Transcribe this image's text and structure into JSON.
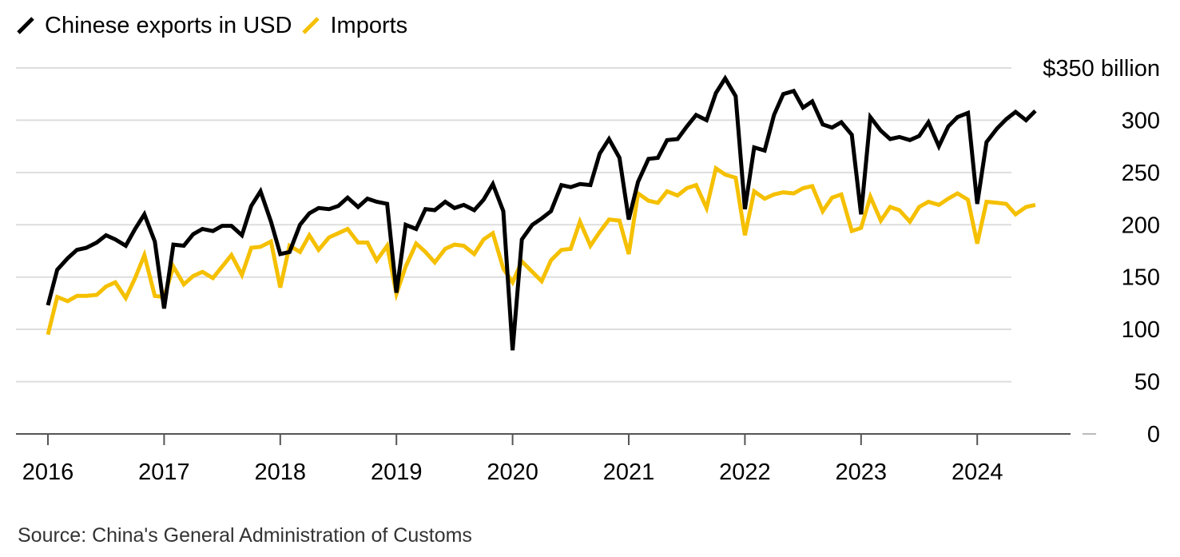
{
  "chart_data": {
    "type": "line",
    "title": "",
    "xlabel": "",
    "ylabel": "",
    "unit_label": "$350 billion",
    "ylim": [
      0,
      350
    ],
    "y_ticks": [
      {
        "value": 0,
        "label": "0"
      },
      {
        "value": 50,
        "label": "50"
      },
      {
        "value": 100,
        "label": "100"
      },
      {
        "value": 150,
        "label": "150"
      },
      {
        "value": 200,
        "label": "200"
      },
      {
        "value": 250,
        "label": "250"
      },
      {
        "value": 300,
        "label": "300"
      },
      {
        "value": 350,
        "label": "$350 billion"
      }
    ],
    "x_ticks": [
      "2016",
      "2017",
      "2018",
      "2019",
      "2020",
      "2021",
      "2022",
      "2023",
      "2024"
    ],
    "x_start_year": 2016,
    "x_end_year": 2024.67,
    "legend": "top-left",
    "series": [
      {
        "name": "Chinese exports in USD",
        "color": "#000000",
        "points": [
          [
            2016.0,
            123
          ],
          [
            2016.08,
            157
          ],
          [
            2016.17,
            168
          ],
          [
            2016.25,
            176
          ],
          [
            2016.33,
            178
          ],
          [
            2016.42,
            183
          ],
          [
            2016.5,
            190
          ],
          [
            2016.58,
            186
          ],
          [
            2016.67,
            180
          ],
          [
            2016.75,
            196
          ],
          [
            2016.83,
            210
          ],
          [
            2016.92,
            184
          ],
          [
            2017.0,
            120
          ],
          [
            2017.08,
            181
          ],
          [
            2017.17,
            180
          ],
          [
            2017.25,
            191
          ],
          [
            2017.33,
            196
          ],
          [
            2017.42,
            194
          ],
          [
            2017.5,
            199
          ],
          [
            2017.58,
            199
          ],
          [
            2017.67,
            190
          ],
          [
            2017.75,
            218
          ],
          [
            2017.83,
            232
          ],
          [
            2017.92,
            203
          ],
          [
            2018.0,
            172
          ],
          [
            2018.08,
            174
          ],
          [
            2018.17,
            200
          ],
          [
            2018.25,
            211
          ],
          [
            2018.33,
            216
          ],
          [
            2018.42,
            215
          ],
          [
            2018.5,
            218
          ],
          [
            2018.58,
            226
          ],
          [
            2018.67,
            217
          ],
          [
            2018.75,
            225
          ],
          [
            2018.83,
            222
          ],
          [
            2018.92,
            220
          ],
          [
            2019.0,
            135
          ],
          [
            2019.08,
            200
          ],
          [
            2019.17,
            196
          ],
          [
            2019.25,
            215
          ],
          [
            2019.33,
            214
          ],
          [
            2019.42,
            222
          ],
          [
            2019.5,
            216
          ],
          [
            2019.58,
            219
          ],
          [
            2019.67,
            214
          ],
          [
            2019.75,
            224
          ],
          [
            2019.83,
            239
          ],
          [
            2019.92,
            213
          ],
          [
            2020.0,
            80
          ],
          [
            2020.08,
            186
          ],
          [
            2020.17,
            200
          ],
          [
            2020.25,
            206
          ],
          [
            2020.33,
            213
          ],
          [
            2020.42,
            238
          ],
          [
            2020.5,
            236
          ],
          [
            2020.58,
            239
          ],
          [
            2020.67,
            238
          ],
          [
            2020.75,
            268
          ],
          [
            2020.83,
            282
          ],
          [
            2020.92,
            264
          ],
          [
            2021.0,
            205
          ],
          [
            2021.08,
            241
          ],
          [
            2021.17,
            263
          ],
          [
            2021.25,
            264
          ],
          [
            2021.33,
            281
          ],
          [
            2021.42,
            282
          ],
          [
            2021.5,
            294
          ],
          [
            2021.58,
            305
          ],
          [
            2021.67,
            300
          ],
          [
            2021.75,
            326
          ],
          [
            2021.83,
            340
          ],
          [
            2021.92,
            323
          ],
          [
            2022.0,
            215
          ],
          [
            2022.08,
            274
          ],
          [
            2022.17,
            271
          ],
          [
            2022.25,
            305
          ],
          [
            2022.33,
            325
          ],
          [
            2022.42,
            328
          ],
          [
            2022.5,
            312
          ],
          [
            2022.58,
            318
          ],
          [
            2022.67,
            296
          ],
          [
            2022.75,
            293
          ],
          [
            2022.83,
            298
          ],
          [
            2022.92,
            286
          ],
          [
            2023.0,
            210
          ],
          [
            2023.08,
            303
          ],
          [
            2023.17,
            290
          ],
          [
            2023.25,
            282
          ],
          [
            2023.33,
            284
          ],
          [
            2023.42,
            281
          ],
          [
            2023.5,
            285
          ],
          [
            2023.58,
            298
          ],
          [
            2023.67,
            275
          ],
          [
            2023.75,
            294
          ],
          [
            2023.83,
            303
          ],
          [
            2023.92,
            307
          ],
          [
            2024.0,
            220
          ],
          [
            2024.08,
            279
          ],
          [
            2024.17,
            292
          ],
          [
            2024.25,
            301
          ],
          [
            2024.33,
            308
          ],
          [
            2024.42,
            300
          ],
          [
            2024.5,
            309
          ]
        ]
      },
      {
        "name": "Imports",
        "color": "#f5c000",
        "points": [
          [
            2016.0,
            95
          ],
          [
            2016.08,
            131
          ],
          [
            2016.17,
            127
          ],
          [
            2016.25,
            132
          ],
          [
            2016.33,
            132
          ],
          [
            2016.42,
            133
          ],
          [
            2016.5,
            141
          ],
          [
            2016.58,
            145
          ],
          [
            2016.67,
            130
          ],
          [
            2016.75,
            149
          ],
          [
            2016.83,
            171
          ],
          [
            2016.92,
            132
          ],
          [
            2017.0,
            131
          ],
          [
            2017.08,
            160
          ],
          [
            2017.17,
            143
          ],
          [
            2017.25,
            151
          ],
          [
            2017.33,
            155
          ],
          [
            2017.42,
            149
          ],
          [
            2017.5,
            160
          ],
          [
            2017.58,
            171
          ],
          [
            2017.67,
            152
          ],
          [
            2017.75,
            178
          ],
          [
            2017.83,
            179
          ],
          [
            2017.92,
            184
          ],
          [
            2018.0,
            140
          ],
          [
            2018.08,
            180
          ],
          [
            2018.17,
            174
          ],
          [
            2018.25,
            190
          ],
          [
            2018.33,
            176
          ],
          [
            2018.42,
            188
          ],
          [
            2018.5,
            192
          ],
          [
            2018.58,
            196
          ],
          [
            2018.67,
            183
          ],
          [
            2018.75,
            183
          ],
          [
            2018.83,
            166
          ],
          [
            2018.92,
            180
          ],
          [
            2019.0,
            134
          ],
          [
            2019.08,
            160
          ],
          [
            2019.17,
            182
          ],
          [
            2019.25,
            174
          ],
          [
            2019.33,
            164
          ],
          [
            2019.42,
            177
          ],
          [
            2019.5,
            181
          ],
          [
            2019.58,
            180
          ],
          [
            2019.67,
            172
          ],
          [
            2019.75,
            186
          ],
          [
            2019.83,
            192
          ],
          [
            2019.92,
            158
          ],
          [
            2020.0,
            145
          ],
          [
            2020.08,
            165
          ],
          [
            2020.17,
            155
          ],
          [
            2020.25,
            146
          ],
          [
            2020.33,
            166
          ],
          [
            2020.42,
            176
          ],
          [
            2020.5,
            177
          ],
          [
            2020.58,
            203
          ],
          [
            2020.67,
            180
          ],
          [
            2020.75,
            193
          ],
          [
            2020.83,
            205
          ],
          [
            2020.92,
            204
          ],
          [
            2021.0,
            172
          ],
          [
            2021.08,
            230
          ],
          [
            2021.17,
            223
          ],
          [
            2021.25,
            221
          ],
          [
            2021.33,
            232
          ],
          [
            2021.42,
            228
          ],
          [
            2021.5,
            235
          ],
          [
            2021.58,
            238
          ],
          [
            2021.67,
            216
          ],
          [
            2021.75,
            254
          ],
          [
            2021.83,
            248
          ],
          [
            2021.92,
            245
          ],
          [
            2022.0,
            190
          ],
          [
            2022.08,
            232
          ],
          [
            2022.17,
            225
          ],
          [
            2022.25,
            229
          ],
          [
            2022.33,
            231
          ],
          [
            2022.42,
            230
          ],
          [
            2022.5,
            235
          ],
          [
            2022.58,
            237
          ],
          [
            2022.67,
            213
          ],
          [
            2022.75,
            226
          ],
          [
            2022.83,
            229
          ],
          [
            2022.92,
            194
          ],
          [
            2023.0,
            197
          ],
          [
            2023.08,
            227
          ],
          [
            2023.17,
            204
          ],
          [
            2023.25,
            217
          ],
          [
            2023.33,
            214
          ],
          [
            2023.42,
            203
          ],
          [
            2023.5,
            217
          ],
          [
            2023.58,
            222
          ],
          [
            2023.67,
            219
          ],
          [
            2023.75,
            225
          ],
          [
            2023.83,
            230
          ],
          [
            2023.92,
            224
          ],
          [
            2024.0,
            182
          ],
          [
            2024.08,
            222
          ],
          [
            2024.17,
            221
          ],
          [
            2024.25,
            220
          ],
          [
            2024.33,
            210
          ],
          [
            2024.42,
            217
          ],
          [
            2024.5,
            219
          ]
        ]
      }
    ]
  },
  "legend": {
    "items": [
      {
        "label": "Chinese exports in USD",
        "color": "#000000"
      },
      {
        "label": "Imports",
        "color": "#f5c000"
      }
    ]
  },
  "source": "Source: China's General Administration of Customs"
}
